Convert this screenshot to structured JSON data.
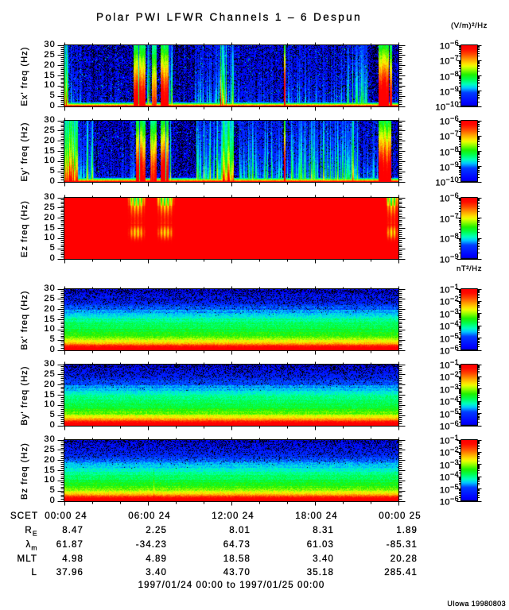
{
  "page": {
    "title": "Polar PWI LFWR Channels 1 – 6 Despun",
    "credit": "UIowa 19980803"
  },
  "chart_data": {
    "type": "heatmap",
    "title": "Polar PWI LFWR Channels 1 – 6 Despun",
    "x_axis": {
      "name": "SCET",
      "tick_labels": [
        "00:00 24",
        "06:00 24",
        "12:00 24",
        "18:00 24",
        "00:00 25"
      ],
      "tick_hours": [
        0,
        6,
        12,
        18,
        24
      ],
      "minor_tick_step_hours": 2,
      "range_hours": [
        0,
        24
      ],
      "caption": "1997/01/24 00:00 to 1997/01/25 00:00"
    },
    "y_axis": {
      "unit": "Hz",
      "ylim": [
        0,
        30
      ],
      "major_ticks": [
        0,
        5,
        10,
        15,
        20,
        25,
        30
      ],
      "minor_tick_step": 1
    },
    "units": {
      "electric": "(V/m)²/Hz",
      "magnetic": "nT²/Hz"
    },
    "colormap": {
      "below_min": "#000000",
      "stops": [
        [
          0.0,
          0,
          0,
          225
        ],
        [
          0.05,
          0,
          0,
          255
        ],
        [
          0.22,
          0,
          60,
          255
        ],
        [
          0.3,
          0,
          200,
          255
        ],
        [
          0.36,
          0,
          255,
          190
        ],
        [
          0.44,
          0,
          255,
          80
        ],
        [
          0.52,
          30,
          240,
          0
        ],
        [
          0.6,
          150,
          255,
          0
        ],
        [
          0.66,
          235,
          255,
          0
        ],
        [
          0.7,
          255,
          225,
          0
        ],
        [
          0.78,
          255,
          150,
          0
        ],
        [
          0.86,
          255,
          70,
          0
        ],
        [
          0.94,
          255,
          10,
          0
        ],
        [
          1.0,
          255,
          0,
          0
        ]
      ]
    },
    "panels": [
      {
        "id": "ex",
        "ylabel": "Ex' freq (Hz)",
        "field": "electric",
        "colorbar_exponents": [
          -6,
          -7,
          -8,
          -9,
          -10
        ],
        "colorbar_range": [
          "1e-10",
          "1e-6"
        ],
        "texture": {
          "kind": "e",
          "seed": 11,
          "bursts": [
            [
              0.0,
              0.3,
              0.85,
              0
            ],
            [
              0.3,
              1.2,
              0.35,
              0
            ],
            [
              1.2,
              4.6,
              0.16,
              0
            ],
            [
              4.97,
              5.83,
              1.0,
              1
            ],
            [
              5.94,
              6.17,
              0.6,
              0
            ],
            [
              6.29,
              6.63,
              0.85,
              1
            ],
            [
              6.91,
              7.49,
              1.0,
              1
            ],
            [
              7.49,
              7.77,
              0.5,
              0
            ],
            [
              9.4,
              11.1,
              0.33,
              0
            ],
            [
              11.1,
              12.15,
              0.75,
              0
            ],
            [
              12.15,
              15.7,
              0.2,
              0
            ],
            [
              15.77,
              15.9,
              1.05,
              1
            ],
            [
              15.9,
              20.1,
              0.28,
              0
            ],
            [
              20.1,
              21.8,
              0.45,
              0
            ],
            [
              22.57,
              23.31,
              1.05,
              1
            ],
            [
              23.37,
              23.54,
              0.95,
              1
            ],
            [
              23.54,
              24.0,
              0.14,
              0
            ]
          ]
        }
      },
      {
        "id": "ey",
        "ylabel": "Ey' freq (Hz)",
        "field": "electric",
        "colorbar_exponents": [
          -6,
          -7,
          -8,
          -9,
          -10
        ],
        "colorbar_range": [
          "1e-10",
          "1e-6"
        ],
        "texture": {
          "kind": "e",
          "seed": 23,
          "bursts": [
            [
              0.0,
              0.95,
              1.0,
              0
            ],
            [
              0.95,
              2.1,
              0.6,
              0
            ],
            [
              2.1,
              4.5,
              0.18,
              0
            ],
            [
              4.7,
              5.05,
              0.5,
              0
            ],
            [
              5.14,
              5.83,
              1.0,
              1
            ],
            [
              6.17,
              6.63,
              0.9,
              1
            ],
            [
              6.91,
              7.49,
              1.0,
              1
            ],
            [
              7.49,
              7.71,
              0.5,
              0
            ],
            [
              9.5,
              11.26,
              0.55,
              0
            ],
            [
              11.26,
              12.15,
              0.85,
              0
            ],
            [
              12.6,
              15.7,
              0.45,
              0
            ],
            [
              15.77,
              15.9,
              1.05,
              1
            ],
            [
              15.9,
              20.1,
              0.52,
              0
            ],
            [
              20.1,
              21.1,
              0.65,
              0
            ],
            [
              21.1,
              22.5,
              0.3,
              0
            ],
            [
              22.57,
              23.49,
              1.05,
              1
            ],
            [
              23.54,
              24.0,
              0.2,
              0
            ]
          ]
        }
      },
      {
        "id": "ez",
        "ylabel": "Ez freq (Hz)",
        "field": "electric",
        "colorbar_exponents": [
          -6,
          -7,
          -8,
          -9
        ],
        "colorbar_range": [
          "1e-9",
          "1e-6"
        ],
        "texture": {
          "kind": "sat",
          "seed": 37,
          "notches": [
            [
              4.51,
              5.83
            ],
            [
              6.57,
              7.89
            ],
            [
              23.03,
              24.0
            ]
          ]
        }
      },
      {
        "id": "bx",
        "ylabel": "Bx' freq (Hz)",
        "field": "magnetic",
        "colorbar_exponents": [
          -1,
          -2,
          -3,
          -4,
          -5,
          -6
        ],
        "colorbar_range": [
          "1e-6",
          "1e-1"
        ],
        "texture": {
          "kind": "b",
          "seed": 53,
          "boost": 0.02,
          "line_at": -1
        }
      },
      {
        "id": "by",
        "ylabel": "By' freq (Hz)",
        "field": "magnetic",
        "colorbar_exponents": [
          -1,
          -2,
          -3,
          -4,
          -5,
          -6
        ],
        "colorbar_range": [
          "1e-6",
          "1e-1"
        ],
        "texture": {
          "kind": "b",
          "seed": 67,
          "boost": 0.0,
          "line_at": -1
        }
      },
      {
        "id": "bz",
        "ylabel": "Bz freq (Hz)",
        "field": "magnetic",
        "colorbar_exponents": [
          -1,
          -2,
          -3,
          -4,
          -5,
          -6
        ],
        "colorbar_range": [
          "1e-6",
          "1e-1"
        ],
        "texture": {
          "kind": "b",
          "seed": 79,
          "boost": 0.0,
          "line_at": 6.4
        }
      }
    ],
    "ephemeris": {
      "time_label": "SCET",
      "rows": [
        {
          "label": "R",
          "subscript": "E",
          "values": [
            "8.47",
            "2.25",
            "8.01",
            "8.31",
            "1.89"
          ]
        },
        {
          "label": "λ",
          "subscript": "m",
          "values": [
            "61.87",
            "-34.23",
            "64.73",
            "61.03",
            "-85.31"
          ]
        },
        {
          "label": "MLT",
          "subscript": "",
          "values": [
            "4.98",
            "4.89",
            "18.58",
            "3.40",
            "20.28"
          ]
        },
        {
          "label": "L",
          "subscript": "",
          "values": [
            "37.96",
            "3.40",
            "43.70",
            "35.18",
            "285.41"
          ]
        }
      ]
    }
  }
}
